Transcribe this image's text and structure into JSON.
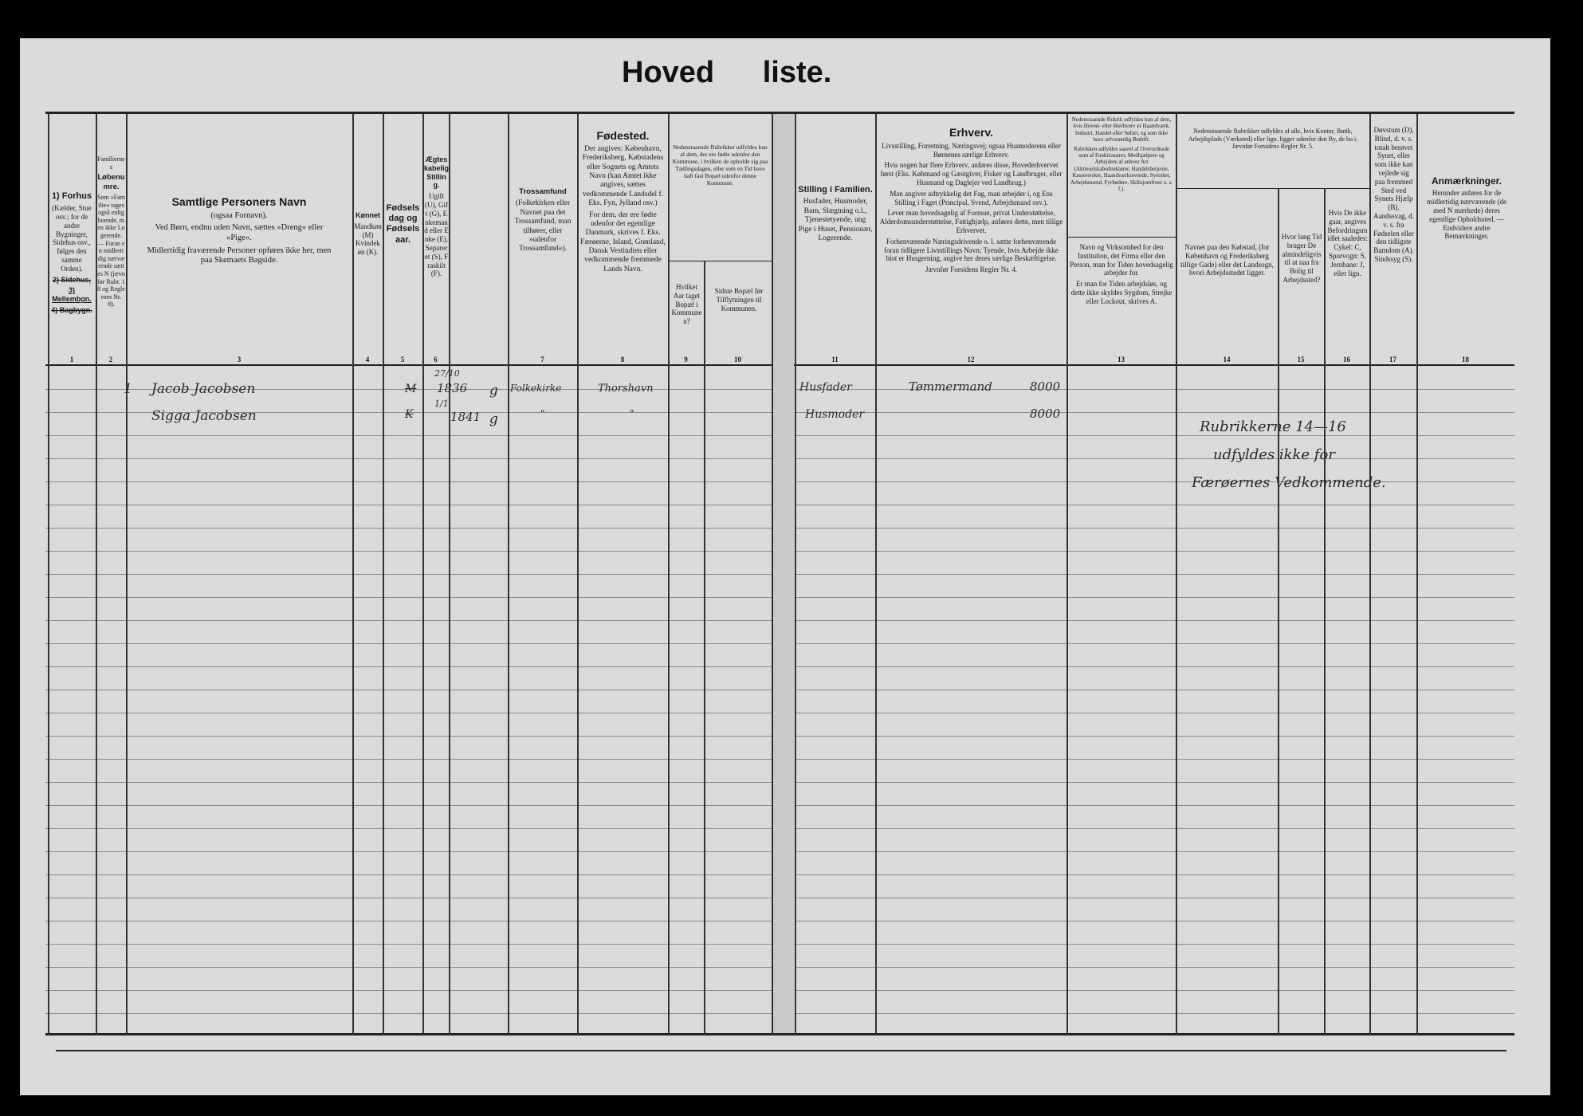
{
  "title": {
    "word1": "Hoved",
    "word2": "liste."
  },
  "columns": {
    "c1": {
      "num": "1",
      "heading": "1) Forhus",
      "body": "(Kælder, Stue osv.; for de andre Bygninger, Sidehus osv., følges den samme Orden).",
      "sub1": "2) Sidehus,",
      "sub2": "3) Mellembgn.",
      "sub3": "4) Bagbygn."
    },
    "c2": {
      "num": "2",
      "pre": "Familiernes",
      "heading": "Løbenumre.",
      "body": "Som »Familie« tages også enlig boende, men ikke Logerende. — Foran en midlertidig nærværende sættes N (jævnfør Rubr. 18 og Reglernes Nr. 8)."
    },
    "c3": {
      "num": "3",
      "heading": "Samtlige Personers Navn",
      "p1": "(ogsaa Fornavn).",
      "p2": "Ved Børn, endnu uden Navn, sættes »Dreng« eller »Pige«.",
      "p3": "Midlertidig fraværende Personer opføres ikke her, men paa Skemaets Bagside."
    },
    "c4": {
      "num": "4",
      "heading": "Kønnet",
      "body": "Mandkøn (M) Kvindekøn (K)."
    },
    "c5": {
      "num": "5",
      "heading": "Fødselsdag og Fødselsaar."
    },
    "c6": {
      "num": "6",
      "heading": "Ægteskabelig Stilling.",
      "body": "Ugift (U), Gift (G), Enkemand eller Enke (E), Separeret (S), Fraskilt (F)."
    },
    "c7": {
      "num": "7",
      "heading": "Trossamfund",
      "body": "(Folkekirken eller Navnet paa det Trossamfund, man tilhører, eller »udenfor Trossamfund«)."
    },
    "c8": {
      "num": "8",
      "heading": "Fødested.",
      "p1": "Der angives: København, Frederiksberg, Købstadens eller Sognets og Amtets Navn (kan Amtet ikke angives, sættes vedkommende Landsdel f. Eks. Fyn, Jylland osv.)",
      "p2": "For dem, der ere fødte udenfor det egentlige Danmark, skrives f. Eks. Færøerne, Island, Grønland, Dansk Vestindien eller vedkommende fremmede Lands Navn."
    },
    "c9_10": {
      "body": "Nedenstaaende Rubrikker udfyldes kun af dem, der ere fødte udenfor den Kommune, i hvilken de opholde sig paa Tællingsdagen, eller som en Tid have haft fast Bopæl udenfor denne Kommune."
    },
    "c9": {
      "num": "9",
      "body": "Hvilket Aar taget Bopæl i Kommunen?"
    },
    "c10": {
      "num": "10",
      "body": "Sidste Bopæl før Tilflytningen til Kommunen."
    },
    "c11": {
      "num": "11",
      "heading": "Stilling i Familien.",
      "body": "Husfader, Husmoder, Barn, Slægtning o.l., Tjenestetyende, ung Pige i Huset, Pensionær, Logerende."
    },
    "c12": {
      "num": "12",
      "heading": "Erhverv.",
      "p1": "Livsstilling, Forretning, Næringsvej; ogsaa Husmoderens eller Børnenes særlige Erhverv.",
      "p2": "Hvis nogen har flere Erhverv, anføres disse, Hovederhvervet først (Eks. Købmand og Gæstgiver, Fisker og Landbruger, eller Husmand og Daglejer ved Landbrug.)",
      "p3": "Man angiver udtrykkelig det Fag, man arbejder i, og Ens Stilling i Faget (Principal, Svend, Arbejdsmand osv.).",
      "p4": "Lever man hovedsagelig af Formue, privat Understøttelse, Alderdomsunderstøttelse, Fattighjælp, anføres dette, men tillige Erhvervet.",
      "p5": "Forhenværende Næringsdrivende o. l. sætte forhenværende foran tidligere Livsstillings Navn; Tyende, hvis Arbejde ikke blot er Husgerning, angive her deres særlige Beskæftigelse.",
      "p6": "Jævnfør Forsidens Regler Nr. 4."
    },
    "c13": {
      "num": "13",
      "top1": "Nedenstaaende Rubrik udfyldes kun af dem, hvis Hoved- eller Bierhverv er Haandværk, Industri, Handel eller Søfart, og som ikke have selvstændig Bedrift.",
      "top2": "Rubrikken udfyldes saavel af Overordnede som af Funktionærer, Medhjælpere og Arbejdere af enhver Art (Aktieselskabsdirektører, Handelsbetjente, Kasserersker, Haandværkssvende, Syersker, Arbejdsmænd, Fyrbødere, Skibsjomfruer o. s. f.).",
      "body": "Navn og Virksomhed for den Institution, det Firma eller den Person, man for Tiden hovedsagelig arbejder for.",
      "body2": "Er man for Tiden arbejdsløs, og dette ikke skyldes Sygdom, Strejke eller Lockout, skrives A."
    },
    "c14_16": {
      "body": "Nedenstaaende Rubrikker udfyldes af alle, hvis Kontor, Butik, Arbejdsplads (Værksted) eller lign. ligger udenfor den By, de bo i. Jævnfør Forsidens Regler Nr. 5."
    },
    "c14": {
      "num": "14",
      "body": "Navnet paa den Købstad, (for København og Frederiksberg tillige Gade) eller det Landsogn, hvori Arbejdsstedet ligger."
    },
    "c15": {
      "num": "15",
      "body": "Hvor lang Tid bruger De almindeligvis til at naa fra Bolig til Arbejdssted?"
    },
    "c16": {
      "num": "16",
      "body": "Hvis De ikke gaar, angives Befordringsmidlet saaledes: Cykel: C, Sporvogn: S, Jernbane: J, eller lign."
    },
    "c17": {
      "num": "17",
      "body": "Døvstum (D), Blind, d. v. s. totalt berøvet Synet, eller som ikke kan vejlede sig paa fremmed Sted ved Synets Hjælp (B). Aandssvag, d. v. s. fra Fødselen eller den tidligste Barndom (A). Sindssyg (S)."
    },
    "c18": {
      "num": "18",
      "heading": "Anmærkninger.",
      "body": "Herunder anføres for de midlertidig nærværende (de med N mærkede) deres egentlige Opholdssted. — Endvidere andre Bemærkninger."
    }
  },
  "entries": [
    {
      "family_no": "1",
      "name": "Jacob Jacobsen",
      "sex": "M",
      "birth_day": "27/10",
      "birth_year": "1836",
      "marital": "g",
      "religion": "Folkekirke",
      "birthplace": "Thorshavn",
      "family_position": "Husfader",
      "occupation": "Tømmermand",
      "code": "8000"
    },
    {
      "family_no": "",
      "name": "Sigga Jacobsen",
      "sex": "K",
      "birth_day": "1/1",
      "birth_year": "1841",
      "marital": "g",
      "religion": "\"",
      "birthplace": "\"",
      "family_position": "Husmoder",
      "occupation": "",
      "code": "8000"
    }
  ],
  "annotation": {
    "line1": "Rubrikkerne 14—16",
    "line2": "udfyldes ikke for",
    "line3": "Færøernes Vedkommende."
  }
}
